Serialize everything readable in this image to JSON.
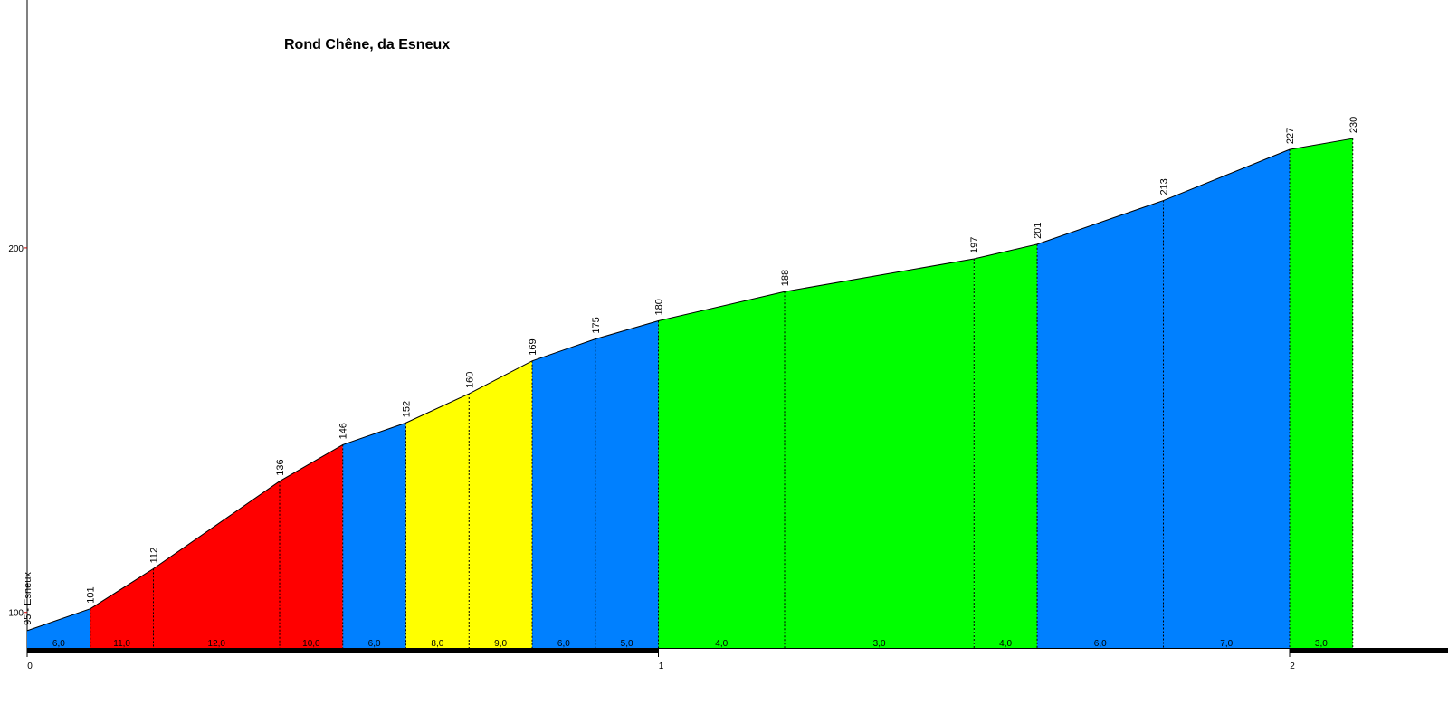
{
  "chart_data": {
    "type": "profile",
    "title": "Rond Chêne, da Esneux",
    "x": [
      0,
      0.1,
      0.2,
      0.4,
      0.5,
      0.6,
      0.7,
      0.8,
      0.9,
      1.0,
      1.2,
      1.5,
      1.6,
      1.8,
      2.0,
      2.1
    ],
    "values": [
      95,
      101,
      112,
      136,
      146,
      152,
      160,
      169,
      175,
      180,
      188,
      197,
      201,
      213,
      227,
      230
    ],
    "value_labels": [
      "95 - Esneux",
      "101",
      "112",
      "136",
      "146",
      "152",
      "160",
      "169",
      "175",
      "180",
      "188",
      "197",
      "201",
      "213",
      "227",
      "230"
    ],
    "gradient_labels": [
      "6,0",
      "11,0",
      "12,0",
      "10,0",
      "6,0",
      "8,0",
      "9,0",
      "6,0",
      "5,0",
      "4,0",
      "3,0",
      "4,0",
      "6,0",
      "7,0",
      "3,0"
    ],
    "segment_colors": [
      "#0080ff",
      "#ff0000",
      "#ff0000",
      "#ff0000",
      "#0080ff",
      "#ffff00",
      "#ffff00",
      "#0080ff",
      "#0080ff",
      "#00ff00",
      "#00ff00",
      "#00ff00",
      "#0080ff",
      "#0080ff",
      "#00ff00"
    ],
    "xlim": [
      0,
      2.205
    ],
    "xticks": [
      0,
      1,
      2
    ],
    "ylim": [
      90,
      268
    ],
    "yticks": [
      100,
      200
    ]
  }
}
